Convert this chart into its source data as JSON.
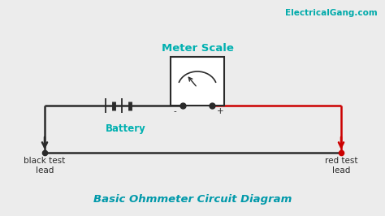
{
  "bg_color": "#ececec",
  "circuit_color": "#2a2a2a",
  "red_color": "#cc0000",
  "teal_color": "#00b0b0",
  "title_text": "Basic Ohmmeter Circuit Diagram",
  "title_color": "#0099aa",
  "watermark_text": "ElectricalGang.com",
  "watermark_color": "#00aaaa",
  "meter_label": "Meter Scale",
  "battery_label": "Battery",
  "black_lead_label": "black test\nlead",
  "red_lead_label": "red test\nlead",
  "minus_label": "-",
  "plus_label": "+",
  "lw": 1.8
}
